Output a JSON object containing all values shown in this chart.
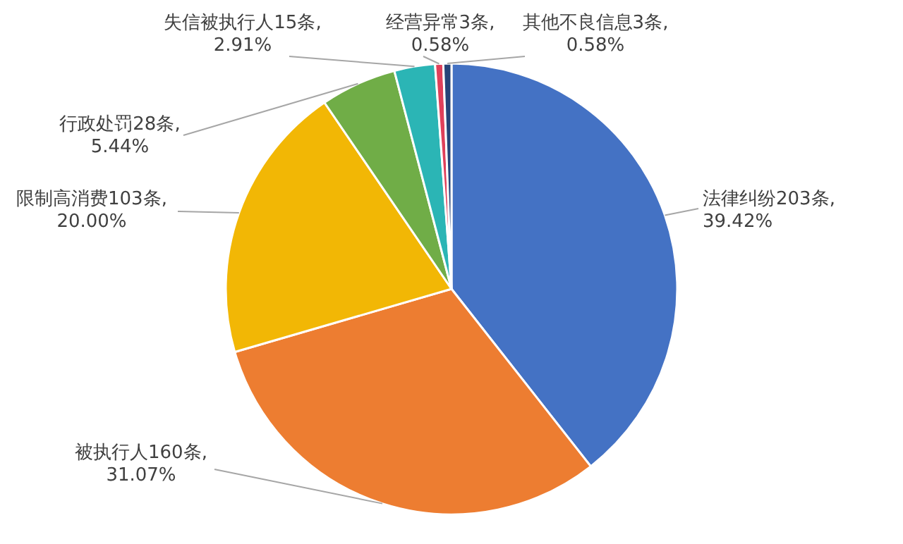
{
  "chart_data": {
    "type": "pie",
    "categories": [
      "法律纠纷",
      "被执行人",
      "限制高消费",
      "行政处罚",
      "失信被执行人",
      "经营异常",
      "其他不良信息"
    ],
    "values": [
      203,
      160,
      103,
      28,
      15,
      3,
      3
    ],
    "value_labels": [
      "203条,\n39.42%",
      "160条,\n31.07%",
      "103条,\n20.00%",
      "28条,\n5.44%",
      "15条,\n2.91%",
      "3条,\n0.58%",
      "3条,\n0.58%"
    ],
    "colors": [
      "#4472c4",
      "#ed7d31",
      "#f2b705",
      "#70ad47",
      "#2bb5b5",
      "#e0405a",
      "#264478"
    ]
  }
}
